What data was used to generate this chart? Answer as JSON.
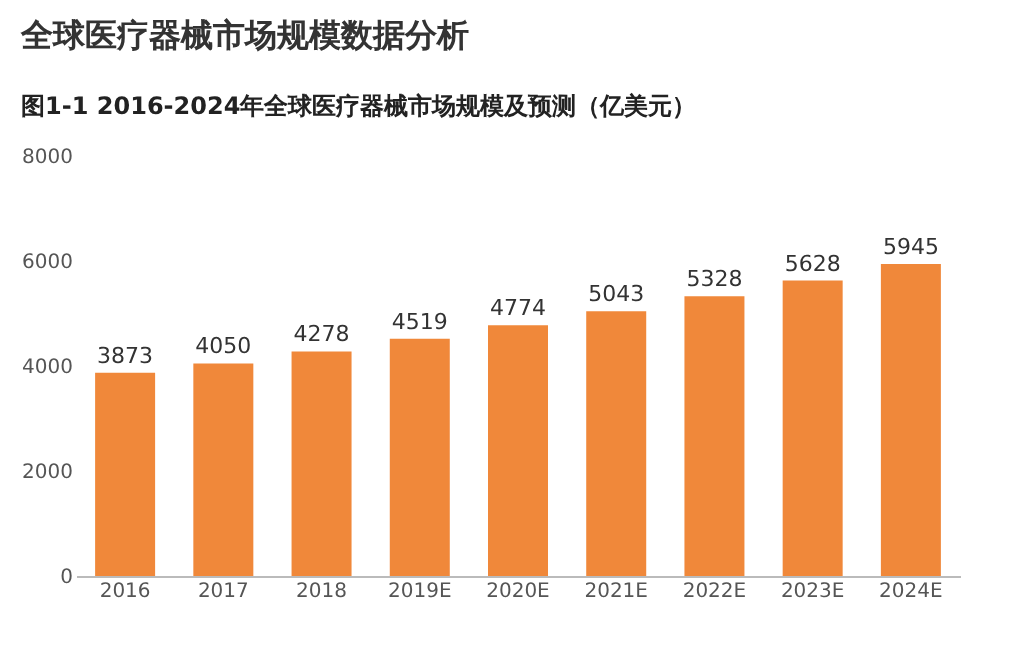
{
  "chart_data": {
    "type": "bar",
    "title": "全球医疗器械市场规模数据分析",
    "subtitle": "图1-1 2016-2024年全球医疗器械市场规模及预测（亿美元）",
    "categories": [
      "2016",
      "2017",
      "2018",
      "2019E",
      "2020E",
      "2021E",
      "2022E",
      "2023E",
      "2024E"
    ],
    "values": [
      3873,
      4050,
      4278,
      4519,
      4774,
      5043,
      5328,
      5628,
      5945
    ],
    "color": "#f0883a",
    "ylim": [
      0,
      8000
    ],
    "yticks": [
      0,
      2000,
      4000,
      6000,
      8000
    ],
    "grid": false,
    "data_labels": true
  }
}
